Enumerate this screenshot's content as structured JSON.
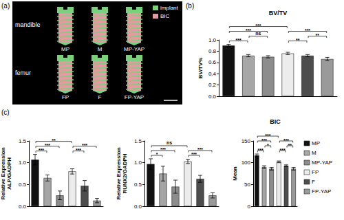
{
  "panel_a": {
    "label": "(a)",
    "rows": [
      {
        "name": "mandible",
        "implants": [
          "MP",
          "M",
          "MP-YAP"
        ]
      },
      {
        "name": "femur",
        "implants": [
          "FP",
          "F",
          "FP-YAP"
        ]
      }
    ],
    "legend": [
      {
        "name": "implant",
        "color": "#7ccf7c"
      },
      {
        "name": "BIC",
        "color": "#e39aa0"
      }
    ]
  },
  "chart_data": [
    {
      "type": "bar",
      "panel": "(b)",
      "title": "BV/TV",
      "y_label": "BV/TV%",
      "categories": [
        "MP",
        "M",
        "MP-YAP",
        "FP",
        "F",
        "FP-YAP"
      ],
      "colors": [
        "#111111",
        "#a6a6a6",
        "#8c8c8c",
        "#ececec",
        "#4d4d4d",
        "#9a9a9a"
      ],
      "values": [
        0.9,
        0.72,
        0.7,
        0.76,
        0.72,
        0.66
      ],
      "errors": [
        0.02,
        0.02,
        0.02,
        0.02,
        0.02,
        0.03
      ],
      "ylim": [
        0,
        1.0
      ],
      "yticks": [
        {
          "value": 0,
          "label": "0.0"
        },
        {
          "value": 0.2,
          "label": "0.2"
        },
        {
          "value": 0.4,
          "label": "0.4"
        },
        {
          "value": 0.6,
          "label": "0.6"
        },
        {
          "value": 0.8,
          "label": "0.8"
        },
        {
          "value": 1.0,
          "label": "1.0"
        }
      ],
      "grid": false,
      "tick_labels": "y",
      "annotations": [
        {
          "from": 0,
          "to": 1,
          "text": "***"
        },
        {
          "from": 0,
          "to": 2,
          "text": "***"
        },
        {
          "from": 1,
          "to": 2,
          "text": "ns"
        },
        {
          "from": 0,
          "to": 3,
          "text": "***"
        },
        {
          "from": 3,
          "to": 4,
          "text": "**"
        },
        {
          "from": 3,
          "to": 5,
          "text": "***"
        },
        {
          "from": 4,
          "to": 5,
          "text": "**"
        }
      ]
    },
    {
      "type": "bar",
      "panel": "(c)",
      "y_label": "Relative Expression\nALP/GADPH",
      "categories": [
        "MP",
        "M",
        "MP-YAP",
        "FP",
        "F",
        "FP-YAP"
      ],
      "colors": [
        "#111111",
        "#a6a6a6",
        "#8c8c8c",
        "#ececec",
        "#4d4d4d",
        "#9a9a9a"
      ],
      "values": [
        1.07,
        0.65,
        0.25,
        0.8,
        0.47,
        0.13
      ],
      "errors": [
        0.12,
        0.07,
        0.1,
        0.06,
        0.12,
        0.05
      ],
      "ylim": [
        0,
        1.5
      ],
      "yticks": [
        {
          "value": 0,
          "label": "0.0"
        },
        {
          "value": 0.5,
          "label": "0.5"
        },
        {
          "value": 1.0,
          "label": "1.0"
        },
        {
          "value": 1.5,
          "label": "1.5"
        }
      ],
      "grid": false,
      "tick_labels": "y",
      "annotations": [
        {
          "from": 0,
          "to": 1,
          "text": "***"
        },
        {
          "from": 0,
          "to": 2,
          "text": "***"
        },
        {
          "from": 0,
          "to": 3,
          "text": "**"
        },
        {
          "from": 3,
          "to": 4,
          "text": "***"
        },
        {
          "from": 3,
          "to": 5,
          "text": "***"
        }
      ]
    },
    {
      "type": "bar",
      "y_label": "Relative Expression\nRUNX2/GADPH",
      "categories": [
        "MP",
        "M",
        "MP-YAP",
        "FP",
        "F",
        "FP-YAP"
      ],
      "colors": [
        "#111111",
        "#a6a6a6",
        "#8c8c8c",
        "#ececec",
        "#4d4d4d",
        "#9a9a9a"
      ],
      "values": [
        0.97,
        0.75,
        0.45,
        1.03,
        0.63,
        0.25
      ],
      "errors": [
        0.12,
        0.17,
        0.15,
        0.05,
        0.08,
        0.06
      ],
      "ylim": [
        0,
        1.5
      ],
      "yticks": [
        {
          "value": 0,
          "label": "0.0"
        },
        {
          "value": 0.5,
          "label": "0.5"
        },
        {
          "value": 1.0,
          "label": "1.0"
        },
        {
          "value": 1.5,
          "label": "1.5"
        }
      ],
      "grid": false,
      "tick_labels": "y",
      "annotations": [
        {
          "from": 0,
          "to": 1,
          "text": "*"
        },
        {
          "from": 0,
          "to": 2,
          "text": "***"
        },
        {
          "from": 0,
          "to": 3,
          "text": "ns"
        },
        {
          "from": 3,
          "to": 4,
          "text": "***"
        },
        {
          "from": 3,
          "to": 5,
          "text": "***"
        }
      ]
    },
    {
      "type": "bar",
      "title": "BIC",
      "y_label": "Mean",
      "categories": [
        "MP",
        "M",
        "MP-YAP",
        "FP",
        "F",
        "FP-YAP"
      ],
      "colors": [
        "#111111",
        "#a6a6a6",
        "#8c8c8c",
        "#ececec",
        "#4d4d4d",
        "#9a9a9a"
      ],
      "values": [
        117,
        90,
        86,
        102,
        93,
        86
      ],
      "errors": [
        3,
        3,
        3,
        2,
        2,
        3
      ],
      "ylim": [
        0,
        150
      ],
      "yticks": [
        0,
        50,
        100,
        150
      ],
      "grid": false,
      "tick_labels": "y",
      "legend": "right",
      "annotations": [
        {
          "from": 0,
          "to": 1,
          "text": "***"
        },
        {
          "from": 0,
          "to": 2,
          "text": "***"
        },
        {
          "from": 1,
          "to": 2,
          "text": "*"
        },
        {
          "from": 0,
          "to": 3,
          "text": "***"
        },
        {
          "from": 3,
          "to": 4,
          "text": "***"
        },
        {
          "from": 3,
          "to": 5,
          "text": "***"
        },
        {
          "from": 4,
          "to": 5,
          "text": "**"
        }
      ]
    }
  ]
}
